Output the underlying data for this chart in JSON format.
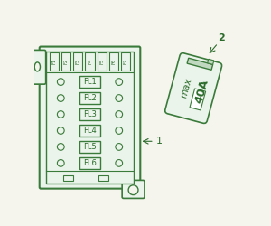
{
  "bg_color": "#f0f4ee",
  "outline_color": "#3a7a3a",
  "box_color": "#eaf4ea",
  "text_color": "#2a6a2a",
  "fuse_labels_top": [
    "F1",
    "F2",
    "F3",
    "F4",
    "F5",
    "F6",
    "F7"
  ],
  "fuse_labels_middle": [
    "FL1",
    "FL2",
    "FL3",
    "FL4",
    "FL5",
    "FL6"
  ],
  "label1": "1",
  "label2": "2",
  "max_text": "max",
  "amp_text": "40A",
  "fig_bg": "#f5f5ee",
  "puller_body_color": "#eaf4ea",
  "puller_bar_color": "#c0d8c0",
  "puller_inner_color": "#ffffff"
}
